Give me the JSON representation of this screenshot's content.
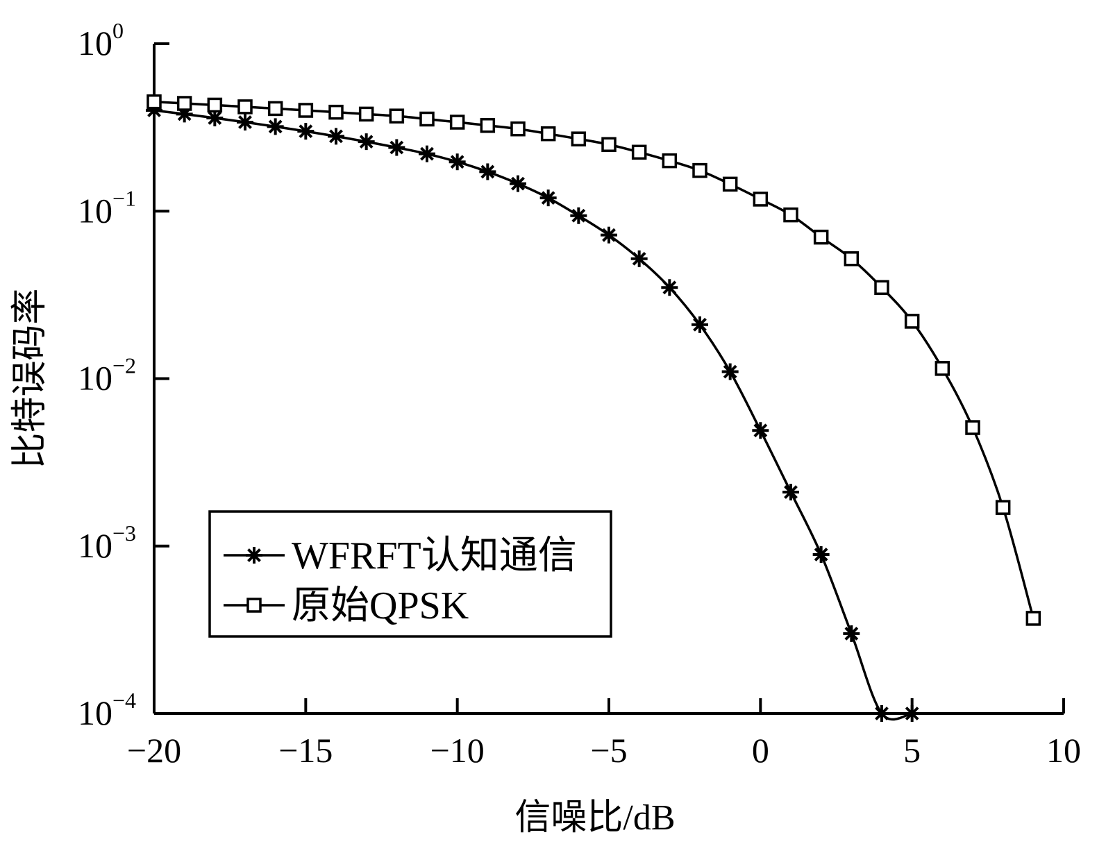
{
  "chart_data": {
    "type": "line",
    "xlabel": "信噪比/dB",
    "ylabel": "比特误码率",
    "xlim": [
      -20,
      10
    ],
    "ylim": [
      0.0001,
      1
    ],
    "yscale": "log",
    "x_ticks": [
      {
        "value": -20,
        "label": "−20"
      },
      {
        "value": -15,
        "label": "−15"
      },
      {
        "value": -10,
        "label": "−10"
      },
      {
        "value": -5,
        "label": "−5"
      },
      {
        "value": 0,
        "label": "0"
      },
      {
        "value": 5,
        "label": "5"
      },
      {
        "value": 10,
        "label": "10"
      }
    ],
    "y_ticks": [
      {
        "value": 1,
        "base": "10",
        "exp": "0"
      },
      {
        "value": 0.1,
        "base": "10",
        "exp": "−1"
      },
      {
        "value": 0.01,
        "base": "10",
        "exp": "−2"
      },
      {
        "value": 0.001,
        "base": "10",
        "exp": "−3"
      },
      {
        "value": 0.0001,
        "base": "10",
        "exp": "−4"
      }
    ],
    "grid": false,
    "legend_position": "bottom-left",
    "series": [
      {
        "name": "WFRFT认知通信",
        "marker": "asterisk",
        "x": [
          -20,
          -19,
          -18,
          -17,
          -16,
          -15,
          -14,
          -13,
          -12,
          -11,
          -10,
          -9,
          -8,
          -7,
          -6,
          -5,
          -4,
          -3,
          -2,
          -1,
          0,
          1,
          2,
          3,
          4,
          5
        ],
        "y": [
          0.4,
          0.38,
          0.36,
          0.34,
          0.32,
          0.3,
          0.28,
          0.26,
          0.24,
          0.22,
          0.197,
          0.172,
          0.146,
          0.12,
          0.094,
          0.072,
          0.052,
          0.035,
          0.021,
          0.011,
          0.0049,
          0.0021,
          0.00089,
          0.0003,
          0.0001,
          0.0001
        ]
      },
      {
        "name": "原始QPSK",
        "marker": "square",
        "x": [
          -20,
          -19,
          -18,
          -17,
          -16,
          -15,
          -14,
          -13,
          -12,
          -11,
          -10,
          -9,
          -8,
          -7,
          -6,
          -5,
          -4,
          -3,
          -2,
          -1,
          0,
          1,
          2,
          3,
          4,
          5,
          6,
          7,
          8,
          9
        ],
        "y": [
          0.45,
          0.44,
          0.43,
          0.42,
          0.41,
          0.4,
          0.39,
          0.38,
          0.37,
          0.355,
          0.34,
          0.325,
          0.31,
          0.29,
          0.27,
          0.25,
          0.225,
          0.2,
          0.175,
          0.145,
          0.118,
          0.095,
          0.07,
          0.052,
          0.035,
          0.022,
          0.0115,
          0.0051,
          0.0017,
          0.00037
        ]
      }
    ]
  }
}
